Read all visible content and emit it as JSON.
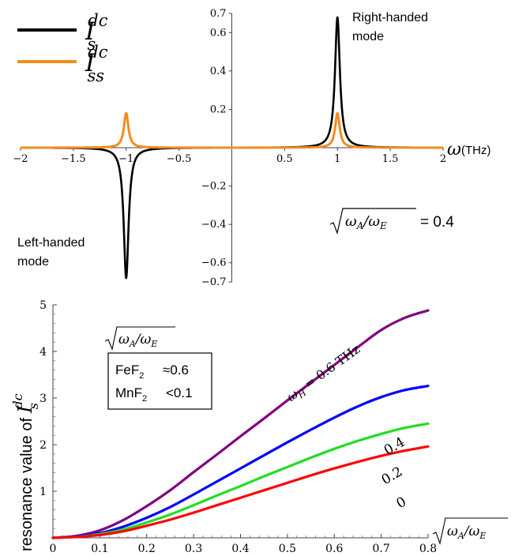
{
  "chart_data": [
    {
      "type": "line",
      "legend": [
        {
          "base": "I",
          "sub": "s",
          "sup": "dc",
          "color": "#000000"
        },
        {
          "base": "I",
          "sub": "ss",
          "sup": "dc",
          "color": "#f28c1f"
        }
      ],
      "xlabel": {
        "symbol": "ω",
        "unit": "(THz)"
      },
      "xlim": [
        -2,
        2
      ],
      "ylim": [
        -0.7,
        0.7
      ],
      "x_ticks": [
        {
          "v": -2,
          "label": "−2"
        },
        {
          "v": -1.5,
          "label": "−1.5"
        },
        {
          "v": -1,
          "label": "−1"
        },
        {
          "v": -0.5,
          "label": "−0.5"
        },
        {
          "v": 0.5,
          "label": "0.5"
        },
        {
          "v": 1,
          "label": "1"
        },
        {
          "v": 1.5,
          "label": "1.5"
        },
        {
          "v": 2,
          "label": "2"
        }
      ],
      "y_ticks": [
        {
          "v": 0.7,
          "label": "0.7"
        },
        {
          "v": 0.6,
          "label": "0.6"
        },
        {
          "v": 0.4,
          "label": "0.4"
        },
        {
          "v": 0.2,
          "label": "0.2"
        },
        {
          "v": -0.2,
          "label": "−0.2"
        },
        {
          "v": -0.4,
          "label": "−0.4"
        },
        {
          "v": -0.6,
          "label": "−0.6"
        },
        {
          "v": -0.7,
          "label": "−0.7"
        }
      ],
      "annotations": {
        "right_mode": [
          "Right-handed",
          "mode"
        ],
        "left_mode": [
          "Left-handed",
          "mode"
        ],
        "ratio_value": "= 0.4"
      },
      "series": [
        {
          "color": "#000000",
          "peaks": [
            {
              "x": 1.0,
              "y": 0.68,
              "width": 0.028
            },
            {
              "x": -1.0,
              "y": -0.68,
              "width": 0.028
            }
          ]
        },
        {
          "color": "#f28c1f",
          "peaks": [
            {
              "x": 1.0,
              "y": 0.18,
              "width": 0.026
            },
            {
              "x": -1.0,
              "y": 0.18,
              "width": 0.026
            }
          ]
        }
      ]
    },
    {
      "type": "line",
      "ylabel": {
        "text": "resonance value of",
        "symbol": "I",
        "sub": "s",
        "sup": "dc"
      },
      "xlim": [
        0,
        0.8
      ],
      "ylim": [
        0,
        5
      ],
      "x_ticks": [
        {
          "v": 0,
          "label": "0"
        },
        {
          "v": 0.1,
          "label": "0.1"
        },
        {
          "v": 0.2,
          "label": "0.2"
        },
        {
          "v": 0.3,
          "label": "0.3"
        },
        {
          "v": 0.4,
          "label": "0.4"
        },
        {
          "v": 0.5,
          "label": "0.5"
        },
        {
          "v": 0.6,
          "label": "0.6"
        },
        {
          "v": 0.7,
          "label": "0.7"
        },
        {
          "v": 0.8,
          "label": "0.8"
        }
      ],
      "y_ticks": [
        {
          "v": 1,
          "label": "1"
        },
        {
          "v": 2,
          "label": "2"
        },
        {
          "v": 3,
          "label": "3"
        },
        {
          "v": 4,
          "label": "4"
        },
        {
          "v": 5,
          "label": "5"
        }
      ],
      "box": {
        "rows": [
          {
            "base": "FeF",
            "sub": "2",
            "value": "≈0.6"
          },
          {
            "base": "MnF",
            "sub": "2",
            "value": "<0.1"
          }
        ]
      },
      "series": [
        {
          "label": "ω_H = 0.6 THz",
          "color": "#800080",
          "x": [
            0,
            0.05,
            0.1,
            0.15,
            0.2,
            0.25,
            0.3,
            0.35,
            0.4,
            0.45,
            0.5,
            0.55,
            0.6,
            0.65,
            0.7,
            0.75,
            0.8
          ],
          "y": [
            0,
            0.04,
            0.16,
            0.38,
            0.68,
            1.02,
            1.41,
            1.79,
            2.18,
            2.56,
            2.95,
            3.33,
            3.71,
            4.09,
            4.46,
            4.72,
            4.88
          ]
        },
        {
          "label": "0.4",
          "color": "#0000ff",
          "x": [
            0,
            0.05,
            0.1,
            0.15,
            0.2,
            0.25,
            0.3,
            0.35,
            0.4,
            0.45,
            0.5,
            0.55,
            0.6,
            0.65,
            0.7,
            0.75,
            0.8
          ],
          "y": [
            0,
            0.03,
            0.1,
            0.24,
            0.43,
            0.66,
            0.93,
            1.21,
            1.49,
            1.77,
            2.05,
            2.32,
            2.58,
            2.82,
            3.02,
            3.17,
            3.26
          ]
        },
        {
          "label": "0.2",
          "color": "#22dd22",
          "x": [
            0,
            0.05,
            0.1,
            0.15,
            0.2,
            0.25,
            0.3,
            0.35,
            0.4,
            0.45,
            0.5,
            0.55,
            0.6,
            0.65,
            0.7,
            0.75,
            0.8
          ],
          "y": [
            0,
            0.02,
            0.08,
            0.18,
            0.33,
            0.5,
            0.7,
            0.91,
            1.11,
            1.32,
            1.52,
            1.72,
            1.91,
            2.08,
            2.23,
            2.36,
            2.45
          ]
        },
        {
          "label": "0",
          "color": "#ff0000",
          "x": [
            0,
            0.05,
            0.1,
            0.15,
            0.2,
            0.25,
            0.3,
            0.35,
            0.4,
            0.45,
            0.5,
            0.55,
            0.6,
            0.65,
            0.7,
            0.75,
            0.8
          ],
          "y": [
            0,
            0.02,
            0.06,
            0.14,
            0.26,
            0.39,
            0.54,
            0.7,
            0.86,
            1.02,
            1.18,
            1.34,
            1.49,
            1.63,
            1.76,
            1.87,
            1.96
          ]
        }
      ]
    }
  ]
}
